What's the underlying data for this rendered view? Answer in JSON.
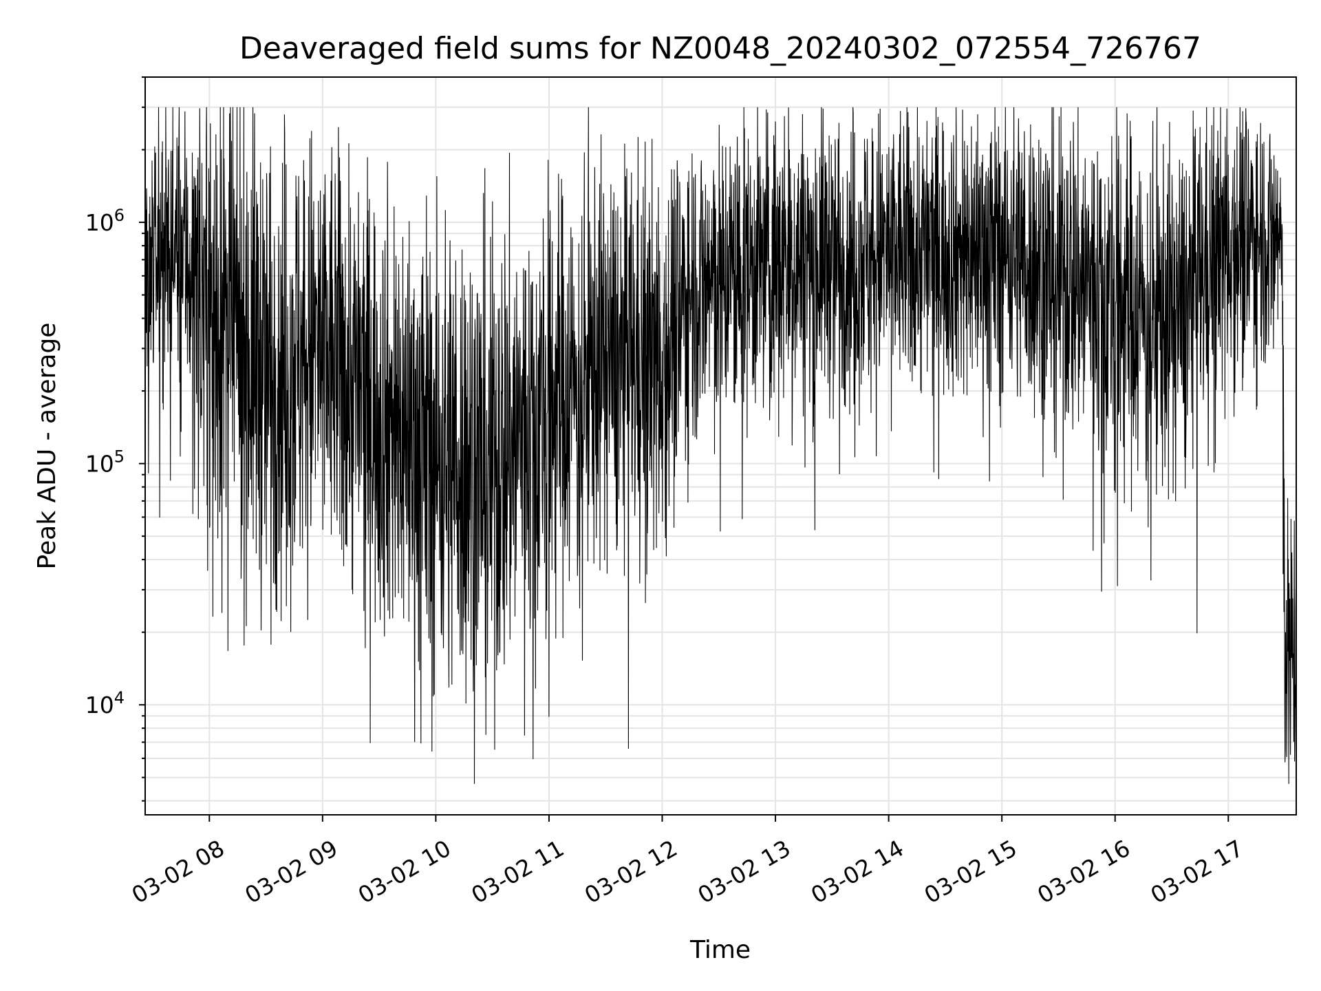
{
  "chart_data": {
    "type": "line",
    "title": "Deaveraged field sums for NZ0048_20240302_072554_726767",
    "xlabel": "Time",
    "ylabel": "Peak ADU - average",
    "x_start": "03-02 07:26",
    "x_end": "03-02 17:36",
    "xlim_hours": [
      7.433,
      17.6
    ],
    "yscale": "log",
    "ylim": [
      3500,
      4000000
    ],
    "grid": true,
    "line_color": "#000000",
    "x_ticks": [
      {
        "hour": 8,
        "label": "03-02 08"
      },
      {
        "hour": 9,
        "label": "03-02 09"
      },
      {
        "hour": 10,
        "label": "03-02 10"
      },
      {
        "hour": 11,
        "label": "03-02 11"
      },
      {
        "hour": 12,
        "label": "03-02 12"
      },
      {
        "hour": 13,
        "label": "03-02 13"
      },
      {
        "hour": 14,
        "label": "03-02 14"
      },
      {
        "hour": 15,
        "label": "03-02 15"
      },
      {
        "hour": 16,
        "label": "03-02 16"
      },
      {
        "hour": 17,
        "label": "03-02 17"
      }
    ],
    "y_ticks": [
      {
        "value": 10000,
        "base": "10",
        "exp": "4"
      },
      {
        "value": 100000,
        "base": "10",
        "exp": "5"
      },
      {
        "value": 1000000,
        "base": "10",
        "exp": "6"
      }
    ],
    "series": [
      {
        "envelope": [
          {
            "time": "07:26",
            "median": 700000,
            "spread": 0.22
          },
          {
            "time": "07:45",
            "median": 800000,
            "spread": 0.28
          },
          {
            "time": "08:00",
            "median": 450000,
            "spread": 0.45
          },
          {
            "time": "08:30",
            "median": 250000,
            "spread": 0.5
          },
          {
            "time": "09:00",
            "median": 300000,
            "spread": 0.45
          },
          {
            "time": "09:30",
            "median": 170000,
            "spread": 0.45
          },
          {
            "time": "10:00",
            "median": 110000,
            "spread": 0.5
          },
          {
            "time": "10:30",
            "median": 100000,
            "spread": 0.5
          },
          {
            "time": "11:00",
            "median": 180000,
            "spread": 0.45
          },
          {
            "time": "11:30",
            "median": 280000,
            "spread": 0.4
          },
          {
            "time": "12:00",
            "median": 280000,
            "spread": 0.4
          },
          {
            "time": "12:15",
            "median": 550000,
            "spread": 0.32
          },
          {
            "time": "13:00",
            "median": 700000,
            "spread": 0.3
          },
          {
            "time": "14:00",
            "median": 750000,
            "spread": 0.3
          },
          {
            "time": "15:00",
            "median": 800000,
            "spread": 0.3
          },
          {
            "time": "16:00",
            "median": 500000,
            "spread": 0.38
          },
          {
            "time": "16:30",
            "median": 400000,
            "spread": 0.35
          },
          {
            "time": "17:00",
            "median": 900000,
            "spread": 0.3
          },
          {
            "time": "17:28",
            "median": 900000,
            "spread": 0.25
          },
          {
            "time": "17:29",
            "median": 200000,
            "spread": 0.3
          },
          {
            "time": "17:30",
            "median": 18000,
            "spread": 0.3
          },
          {
            "time": "17:36",
            "median": 18000,
            "spread": 0.3
          }
        ],
        "min_value": 4700,
        "max_value": 3000000
      }
    ]
  }
}
